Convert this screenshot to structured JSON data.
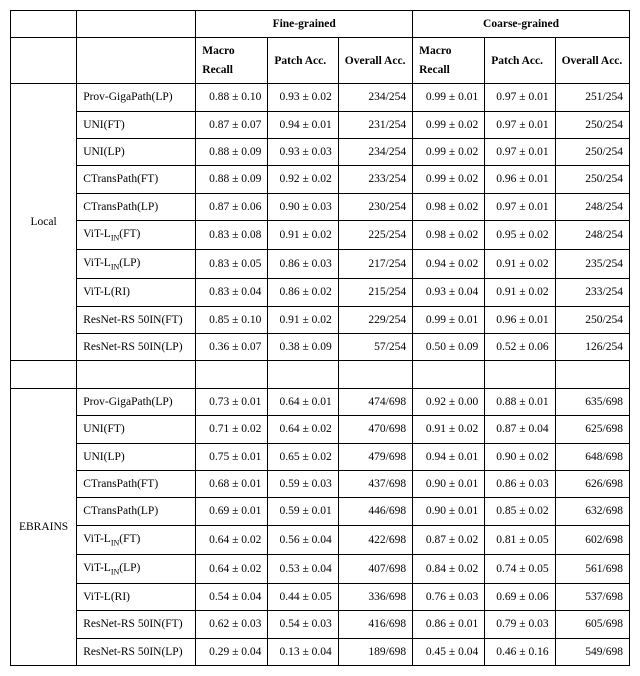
{
  "header": {
    "fine": "Fine-grained",
    "coarse": "Coarse-grained",
    "macro_recall": "Macro Recall",
    "patch_acc": "Patch Acc.",
    "overall_acc": "Overall Acc."
  },
  "groups": [
    {
      "name": "Local",
      "rows": [
        {
          "method": "Prov-GigaPath(LP)",
          "f_mr": "0.88 ± 0.10",
          "f_pa": "0.93 ± 0.02",
          "f_oa": "234/254",
          "c_mr": "0.99 ± 0.01",
          "c_pa": "0.97 ± 0.01",
          "c_oa": "251/254"
        },
        {
          "method": "UNI(FT)",
          "f_mr": "0.87 ± 0.07",
          "f_pa": "0.94 ± 0.01",
          "f_oa": "231/254",
          "c_mr": "0.99 ± 0.02",
          "c_pa": "0.97 ± 0.01",
          "c_oa": "250/254"
        },
        {
          "method": "UNI(LP)",
          "f_mr": "0.88 ± 0.09",
          "f_pa": "0.93 ± 0.03",
          "f_oa": "234/254",
          "c_mr": "0.99 ± 0.02",
          "c_pa": "0.97 ± 0.01",
          "c_oa": "250/254"
        },
        {
          "method": "CTransPath(FT)",
          "f_mr": "0.88 ± 0.09",
          "f_pa": "0.92 ± 0.02",
          "f_oa": "233/254",
          "c_mr": "0.99 ± 0.02",
          "c_pa": "0.96 ± 0.01",
          "c_oa": "250/254"
        },
        {
          "method": "CTransPath(LP)",
          "f_mr": "0.87 ± 0.06",
          "f_pa": "0.90 ± 0.03",
          "f_oa": "230/254",
          "c_mr": "0.98 ± 0.02",
          "c_pa": "0.97 ± 0.01",
          "c_oa": "248/254"
        },
        {
          "method": "ViT-L_IN(FT)",
          "sub": true,
          "f_mr": "0.83 ± 0.08",
          "f_pa": "0.91 ± 0.02",
          "f_oa": "225/254",
          "c_mr": "0.98 ± 0.02",
          "c_pa": "0.95 ± 0.02",
          "c_oa": "248/254"
        },
        {
          "method": "ViT-L_IN(LP)",
          "sub": true,
          "f_mr": "0.83 ± 0.05",
          "f_pa": "0.86 ± 0.03",
          "f_oa": "217/254",
          "c_mr": "0.94 ± 0.02",
          "c_pa": "0.91 ± 0.02",
          "c_oa": "235/254"
        },
        {
          "method": "ViT-L(RI)",
          "f_mr": "0.83 ± 0.04",
          "f_pa": "0.86 ± 0.02",
          "f_oa": "215/254",
          "c_mr": "0.93 ± 0.04",
          "c_pa": "0.91 ± 0.02",
          "c_oa": "233/254"
        },
        {
          "method": "ResNet-RS 50IN(FT)",
          "f_mr": "0.85 ± 0.10",
          "f_pa": "0.91 ± 0.02",
          "f_oa": "229/254",
          "c_mr": "0.99 ± 0.01",
          "c_pa": "0.96 ± 0.01",
          "c_oa": "250/254"
        },
        {
          "method": "ResNet-RS 50IN(LP)",
          "f_mr": "0.36 ± 0.07",
          "f_pa": "0.38 ± 0.09",
          "f_oa": "57/254",
          "c_mr": "0.50 ± 0.09",
          "c_pa": "0.52 ± 0.06",
          "c_oa": "126/254"
        }
      ]
    },
    {
      "name": "EBRAINS",
      "rows": [
        {
          "method": "Prov-GigaPath(LP)",
          "f_mr": "0.73 ± 0.01",
          "f_pa": "0.64 ± 0.01",
          "f_oa": "474/698",
          "c_mr": "0.92 ± 0.00",
          "c_pa": "0.88 ± 0.01",
          "c_oa": "635/698"
        },
        {
          "method": "UNI(FT)",
          "f_mr": "0.71 ± 0.02",
          "f_pa": "0.64 ± 0.02",
          "f_oa": "470/698",
          "c_mr": "0.91 ± 0.02",
          "c_pa": "0.87 ± 0.04",
          "c_oa": "625/698"
        },
        {
          "method": "UNI(LP)",
          "f_mr": "0.75 ± 0.01",
          "f_pa": "0.65 ± 0.02",
          "f_oa": "479/698",
          "c_mr": "0.94 ± 0.01",
          "c_pa": "0.90 ± 0.02",
          "c_oa": "648/698"
        },
        {
          "method": "CTransPath(FT)",
          "f_mr": "0.68 ± 0.01",
          "f_pa": "0.59 ± 0.03",
          "f_oa": "437/698",
          "c_mr": "0.90 ± 0.01",
          "c_pa": "0.86 ± 0.03",
          "c_oa": "626/698"
        },
        {
          "method": "CTransPath(LP)",
          "f_mr": "0.69 ± 0.01",
          "f_pa": "0.59 ± 0.01",
          "f_oa": "446/698",
          "c_mr": "0.90 ± 0.01",
          "c_pa": "0.85 ± 0.02",
          "c_oa": "632/698"
        },
        {
          "method": "ViT-L_IN(FT)",
          "sub": true,
          "f_mr": "0.64 ± 0.02",
          "f_pa": "0.56 ± 0.04",
          "f_oa": "422/698",
          "c_mr": "0.87 ± 0.02",
          "c_pa": "0.81 ± 0.05",
          "c_oa": "602/698"
        },
        {
          "method": "ViT-L_IN(LP)",
          "sub": true,
          "f_mr": "0.64 ± 0.02",
          "f_pa": "0.53 ± 0.04",
          "f_oa": "407/698",
          "c_mr": "0.84 ± 0.02",
          "c_pa": "0.74 ± 0.05",
          "c_oa": "561/698"
        },
        {
          "method": "ViT-L(RI)",
          "f_mr": "0.54 ± 0.04",
          "f_pa": "0.44 ± 0.05",
          "f_oa": "336/698",
          "c_mr": "0.76 ± 0.03",
          "c_pa": "0.69 ± 0.06",
          "c_oa": "537/698"
        },
        {
          "method": "ResNet-RS 50IN(FT)",
          "f_mr": "0.62 ± 0.03",
          "f_pa": "0.54 ± 0.03",
          "f_oa": "416/698",
          "c_mr": "0.86 ± 0.01",
          "c_pa": "0.79 ± 0.03",
          "c_oa": "605/698"
        },
        {
          "method": "ResNet-RS 50IN(LP)",
          "f_mr": "0.29 ± 0.04",
          "f_pa": "0.13 ± 0.04",
          "f_oa": "189/698",
          "c_mr": "0.45 ± 0.04",
          "c_pa": "0.46 ± 0.16",
          "c_oa": "549/698"
        }
      ]
    }
  ]
}
